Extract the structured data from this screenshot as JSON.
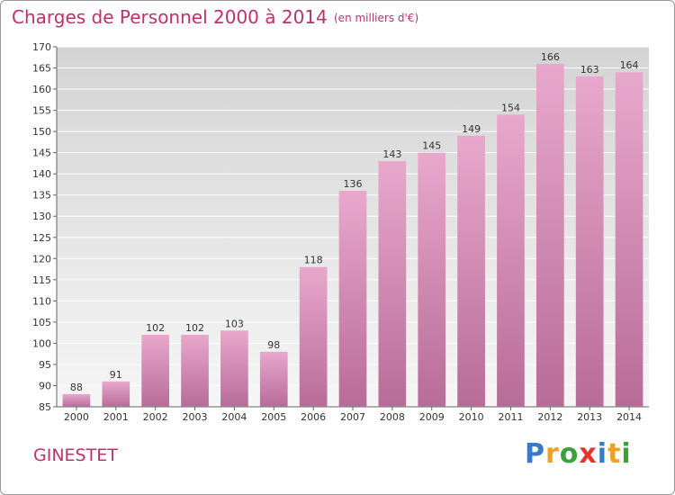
{
  "title": "Charges de Personnel 2000 à 2014",
  "subtitle": "(en milliers d'€)",
  "commune": "GINESTET",
  "brand": {
    "letters": [
      {
        "char": "P",
        "color": "#3a78c8"
      },
      {
        "char": "r",
        "color": "#f0a020"
      },
      {
        "char": "o",
        "color": "#3aa040"
      },
      {
        "char": "x",
        "color": "#e8322a"
      },
      {
        "char": "i",
        "color": "#3a78c8"
      },
      {
        "char": "t",
        "color": "#f0a020"
      },
      {
        "char": "i",
        "color": "#3aa040"
      }
    ]
  },
  "colors": {
    "title": "#c0306a",
    "bar_top": "#e8a8cc",
    "bar_bottom": "#b86c98",
    "plot_background_top": "#d4d4d4",
    "plot_background_bottom": "#f6f6f6"
  },
  "chart_data": {
    "type": "bar",
    "title": "Charges de Personnel 2000 à 2014",
    "subtitle": "(en milliers d'€)",
    "categories": [
      "2000",
      "2001",
      "2002",
      "2003",
      "2004",
      "2005",
      "2006",
      "2007",
      "2008",
      "2009",
      "2010",
      "2011",
      "2012",
      "2013",
      "2014"
    ],
    "values": [
      88,
      91,
      102,
      102,
      103,
      98,
      118,
      136,
      143,
      145,
      149,
      154,
      166,
      163,
      164
    ],
    "ylim": [
      85,
      170
    ],
    "yticks": [
      85,
      90,
      95,
      100,
      105,
      110,
      115,
      120,
      125,
      130,
      135,
      140,
      145,
      150,
      155,
      160,
      165,
      170
    ],
    "grid": true,
    "xlabel": "",
    "ylabel": ""
  }
}
